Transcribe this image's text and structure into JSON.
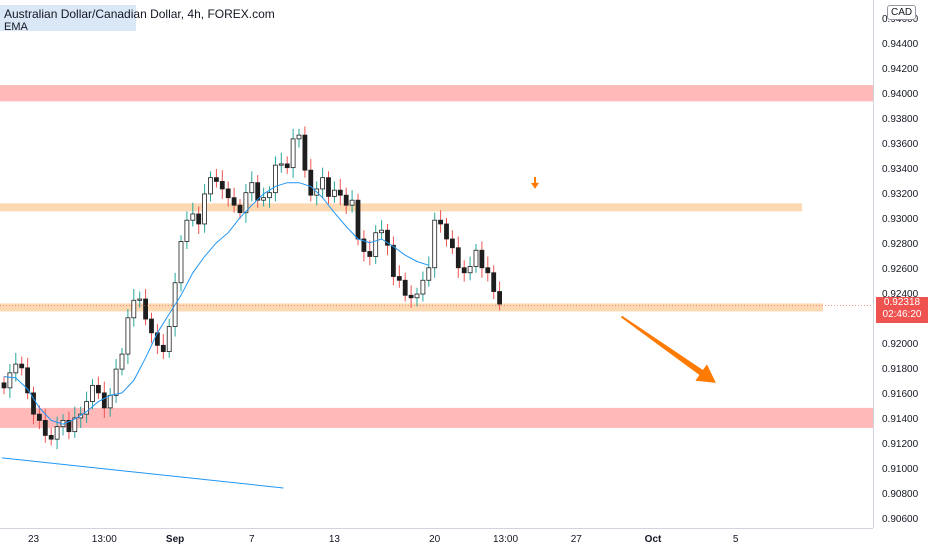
{
  "header": {
    "title": "Australian Dollar/Canadian Dollar, 4h, FOREX.com",
    "indicator": "EMA",
    "currency": "CAD"
  },
  "last_price": {
    "value": "0.92318",
    "countdown": "02:46:20",
    "color": "#ef5350"
  },
  "colors": {
    "bull": "#ffffff",
    "bear": "#1e1e1e",
    "bar_outline": "#1e1e1e",
    "wick_up": "#26a69a",
    "wick_down": "#ef5350",
    "ema": "#2196f3",
    "resistance_zone": "#ffb9b9",
    "pivot_zone": "#fcd8b3",
    "arrow": "#ff7a00",
    "trendline": "#2196f3"
  },
  "chart_data": {
    "type": "candlestick",
    "symbol": "AUDCAD",
    "timeframe": "4h",
    "y_ticks": [
      "0.94600",
      "0.94400",
      "0.94200",
      "0.94000",
      "0.93800",
      "0.93600",
      "0.93400",
      "0.93200",
      "0.93000",
      "0.92800",
      "0.92600",
      "0.92400",
      "0.92200",
      "0.92000",
      "0.91800",
      "0.91600",
      "0.91400",
      "0.91200",
      "0.91000",
      "0.90800",
      "0.90600"
    ],
    "x_ticks": [
      {
        "label": "23",
        "bold": false,
        "bar": 5
      },
      {
        "label": "13:00",
        "bold": false,
        "bar": 17
      },
      {
        "label": "Sep",
        "bold": true,
        "bar": 29
      },
      {
        "label": "7",
        "bold": false,
        "bar": 42
      },
      {
        "label": "13",
        "bold": false,
        "bar": 56
      },
      {
        "label": "20",
        "bold": false,
        "bar": 73
      },
      {
        "label": "13:00",
        "bold": false,
        "bar": 85
      },
      {
        "label": "27",
        "bold": false,
        "bar": 97
      },
      {
        "label": "Oct",
        "bold": true,
        "bar": 110
      },
      {
        "label": "5",
        "bold": false,
        "bar": 124
      }
    ],
    "ylim": [
      0.9054,
      0.9476
    ],
    "bar_count_visible": 140,
    "closes": [
      0.9166,
      0.9178,
      0.9185,
      0.9182,
      0.9162,
      0.9145,
      0.914,
      0.9128,
      0.9125,
      0.9135,
      0.914,
      0.9131,
      0.9142,
      0.9145,
      0.9155,
      0.9168,
      0.9162,
      0.915,
      0.916,
      0.9181,
      0.9193,
      0.9222,
      0.9236,
      0.9237,
      0.9221,
      0.921,
      0.92,
      0.9195,
      0.9215,
      0.925,
      0.9283,
      0.93,
      0.9305,
      0.9297,
      0.9321,
      0.9334,
      0.9331,
      0.9325,
      0.9318,
      0.9312,
      0.9306,
      0.9322,
      0.933,
      0.9316,
      0.9318,
      0.9322,
      0.9344,
      0.9345,
      0.9342,
      0.9365,
      0.9368,
      0.934,
      0.932,
      0.9325,
      0.9334,
      0.9319,
      0.9324,
      0.932,
      0.9312,
      0.9316,
      0.9285,
      0.9275,
      0.9271,
      0.929,
      0.9292,
      0.928,
      0.9255,
      0.9252,
      0.924,
      0.9238,
      0.9241,
      0.9252,
      0.9262,
      0.93,
      0.9297,
      0.9285,
      0.9278,
      0.9262,
      0.9258,
      0.9263,
      0.9276,
      0.9262,
      0.9258,
      0.9243,
      0.9233
    ],
    "ema": [
      0.9175,
      0.9174,
      0.9165,
      0.915,
      0.914,
      0.9137,
      0.9141,
      0.9147,
      0.9155,
      0.916,
      0.9162,
      0.9172,
      0.919,
      0.921,
      0.9225,
      0.924,
      0.9258,
      0.9271,
      0.9282,
      0.929,
      0.9302,
      0.9312,
      0.9321,
      0.9327,
      0.933,
      0.933,
      0.9327,
      0.9318,
      0.9306,
      0.9295,
      0.9285,
      0.9282,
      0.9285,
      0.9279,
      0.9272,
      0.9267,
      0.9264
    ],
    "ema_sample_every": 2,
    "zones": [
      {
        "kind": "resistance",
        "low": 0.9395,
        "high": 0.9408
      },
      {
        "kind": "pivot",
        "low": 0.93105,
        "high": 0.93135
      },
      {
        "kind": "pivot",
        "low": 0.9231,
        "high": 0.92335
      },
      {
        "kind": "support",
        "low": 0.9134,
        "high": 0.915
      }
    ],
    "trendline": [
      {
        "bar": 0,
        "price": 0.911
      },
      {
        "bar": 46,
        "price": 0.9086
      }
    ],
    "forecast_arrow": {
      "from_bar": 105,
      "from_price": 0.9223,
      "to_bar": 121,
      "to_price": 0.917
    },
    "signal_marker": {
      "bar": 90,
      "price": 0.9325
    }
  }
}
